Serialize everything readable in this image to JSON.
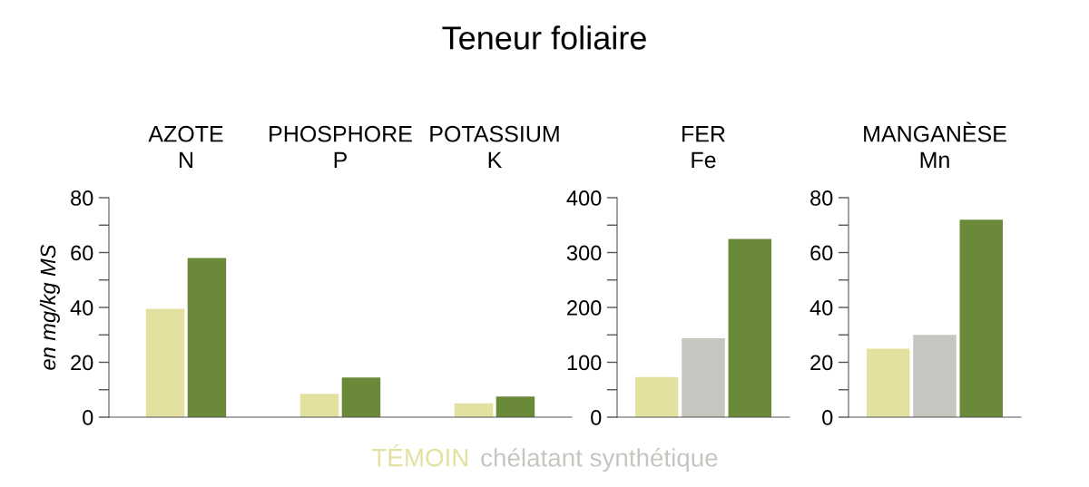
{
  "chart_data": [
    {
      "type": "bar",
      "title": "Teneur foliaire",
      "ylabel": "en mg/kg MS",
      "categories": [
        "AZOTE\nN",
        "PHOSPHORE\nP",
        "POTASSIUM\nK"
      ],
      "series": [
        {
          "name": "TÉMOIN",
          "color": "#e3e19f",
          "values": [
            39.5,
            8.5,
            5
          ]
        },
        {
          "name": "chélatant synthétique",
          "color": "#c6c5c0",
          "values": [
            null,
            null,
            null
          ]
        },
        {
          "color": "#6a8a3a",
          "values": [
            58,
            14.5,
            7.5
          ]
        }
      ],
      "ylim": [
        0,
        80
      ],
      "yticks": [
        0,
        {
          "value": 10,
          "label": null
        },
        20,
        {
          "value": 30,
          "label": null
        },
        40,
        {
          "value": 50,
          "label": null
        },
        60,
        {
          "value": 70,
          "label": null
        },
        80
      ],
      "legend": "bottom",
      "grid": false
    },
    {
      "type": "bar",
      "categories": [
        "FER\nFe"
      ],
      "series": [
        {
          "color": "#e3e19f",
          "values": [
            73
          ]
        },
        {
          "color": "#c6c5c0",
          "values": [
            144
          ]
        },
        {
          "color": "#6a8a3a",
          "values": [
            325
          ]
        }
      ],
      "ylim": [
        0,
        400
      ],
      "yticks": [
        0,
        {
          "value": 50,
          "label": null
        },
        100,
        {
          "value": 150,
          "label": null
        },
        200,
        {
          "value": 250,
          "label": null
        },
        300,
        {
          "value": 350,
          "label": null
        },
        400
      ],
      "grid": false
    },
    {
      "type": "bar",
      "categories": [
        "MANGANÈSE\nMn"
      ],
      "series": [
        {
          "color": "#e3e19f",
          "values": [
            25
          ]
        },
        {
          "color": "#c6c5c0",
          "values": [
            30
          ]
        },
        {
          "color": "#6a8a3a",
          "values": [
            72
          ]
        }
      ],
      "ylim": [
        0,
        80
      ],
      "yticks": [
        0,
        {
          "value": 10,
          "label": null
        },
        20,
        {
          "value": 30,
          "label": null
        },
        40,
        {
          "value": 50,
          "label": null
        },
        60,
        {
          "value": 70,
          "label": null
        },
        80
      ],
      "grid": false
    }
  ]
}
